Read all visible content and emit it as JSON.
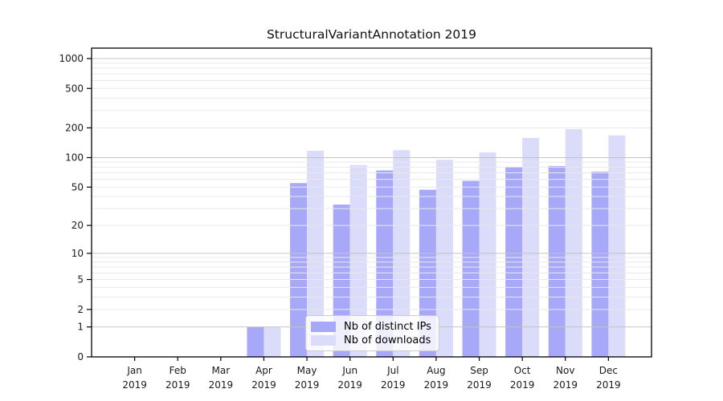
{
  "title": "StructuralVariantAnnotation 2019",
  "colors": {
    "distinct_ips_bar": "#a8a8f8",
    "downloads_bar": "#dbdbfa",
    "major_grid": "#c4c4c4",
    "minor_grid": "#e9e9e9",
    "axis": "#000000",
    "legend_border": "#cccccc"
  },
  "legend": {
    "items": [
      {
        "label": "Nb of distinct IPs",
        "color": "#a8a8f8"
      },
      {
        "label": "Nb of downloads",
        "color": "#dbdbfa"
      }
    ]
  },
  "chart_data": {
    "type": "bar",
    "title": "StructuralVariantAnnotation 2019",
    "months": [
      "Jan",
      "Feb",
      "Mar",
      "Apr",
      "May",
      "Jun",
      "Jul",
      "Aug",
      "Sep",
      "Oct",
      "Nov",
      "Dec"
    ],
    "year": "2019",
    "series": [
      {
        "name": "Nb of distinct IPs",
        "color": "#a8a8f8",
        "values": [
          0,
          0,
          0,
          1,
          55,
          33,
          74,
          47,
          58,
          80,
          82,
          72
        ]
      },
      {
        "name": "Nb of downloads",
        "color": "#dbdbfa",
        "values": [
          0,
          0,
          0,
          1,
          117,
          84,
          119,
          95,
          113,
          158,
          194,
          168
        ]
      }
    ],
    "xlabel": "",
    "ylabel": "",
    "yscale": "log10(1+x)",
    "yticks": [
      0,
      1,
      2,
      5,
      10,
      20,
      50,
      100,
      200,
      500,
      1000
    ],
    "ylim": [
      0,
      1100
    ],
    "grid": true,
    "grid_major_at": [
      1,
      10,
      100,
      1000
    ],
    "legend_position": "inside lower center"
  }
}
